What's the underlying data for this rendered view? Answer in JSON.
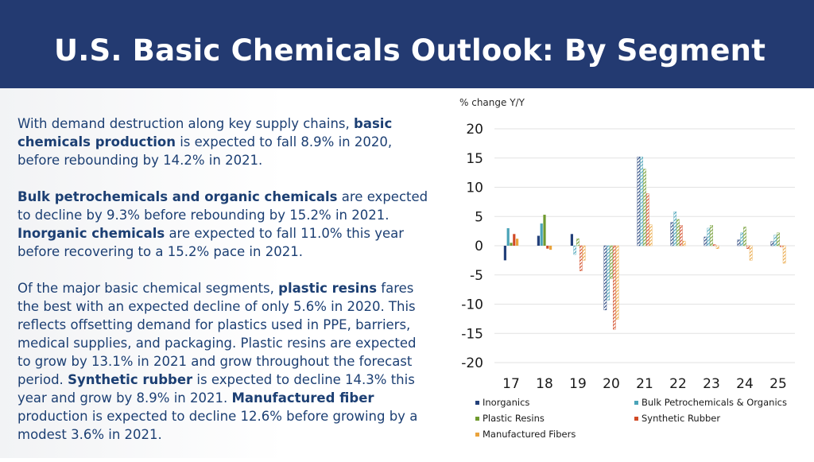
{
  "header": {
    "title": "U.S. Basic Chemicals Outlook: By Segment"
  },
  "paragraphs": [
    {
      "runs": [
        {
          "text": "With demand destruction along key supply chains, ",
          "bold": false
        },
        {
          "text": "basic chemicals production",
          "bold": true
        },
        {
          "text": " is expected to fall 8.9% in 2020, before rebounding by 14.2% in 2021.",
          "bold": false
        }
      ]
    },
    {
      "runs": [
        {
          "text": "Bulk petrochemicals and organic chemicals",
          "bold": true
        },
        {
          "text": " are expected to decline by 9.3% before rebounding by 15.2% in 2021. ",
          "bold": false
        },
        {
          "text": "Inorganic chemicals",
          "bold": true
        },
        {
          "text": " are expected to fall 11.0% this year before recovering to a 15.2% pace in 2021.",
          "bold": false
        }
      ]
    },
    {
      "runs": [
        {
          "text": "Of the major basic chemical segments, ",
          "bold": false
        },
        {
          "text": "plastic resins",
          "bold": true
        },
        {
          "text": " fares the best with an expected decline of only 5.6% in 2020. This reflects offsetting demand for plastics used in PPE, barriers, medical supplies, and packaging. Plastic resins are expected to grow by 13.1% in 2021 and grow throughout the forecast period. ",
          "bold": false
        },
        {
          "text": "Synthetic rubber",
          "bold": true
        },
        {
          "text": " is expected to decline 14.3% this year and grow by 8.9% in 2021. ",
          "bold": false
        },
        {
          "text": "Manufactured fiber",
          "bold": true
        },
        {
          "text": " production is expected to decline 12.6% before growing by a modest 3.6% in 2021.",
          "bold": false
        }
      ]
    }
  ],
  "chart_data": {
    "type": "bar",
    "ylabel": "% change Y/Y",
    "ylim": [
      -20,
      20
    ],
    "yticks": [
      20,
      15,
      10,
      5,
      0,
      -5,
      -10,
      -15,
      -20
    ],
    "grid": true,
    "legend_position": "bottom",
    "categories": [
      "17",
      "18",
      "19",
      "20",
      "21",
      "22",
      "23",
      "24",
      "25"
    ],
    "series": [
      {
        "name": "Inorganics",
        "color": "#23407a",
        "pattern": "solid",
        "values": [
          -2.5,
          1.7,
          2.0,
          -11.0,
          15.2,
          4.0,
          1.5,
          1.0,
          0.7
        ]
      },
      {
        "name": "Bulk Petrochemicals & Organics",
        "color": "#4aa3b8",
        "pattern": "solid-then-hatched",
        "values": [
          3.0,
          3.8,
          -1.5,
          -9.3,
          15.2,
          5.8,
          3.0,
          2.2,
          1.8
        ]
      },
      {
        "name": "Plastic Resins",
        "color": "#6f9a2e",
        "pattern": "solid-then-hatched",
        "values": [
          0.5,
          5.3,
          1.2,
          -5.6,
          13.1,
          4.5,
          3.5,
          3.2,
          2.2
        ]
      },
      {
        "name": "Synthetic Rubber",
        "color": "#d14a26",
        "pattern": "solid-then-hatched",
        "values": [
          2.0,
          -0.5,
          -4.3,
          -14.3,
          8.9,
          3.5,
          0.2,
          -0.5,
          -0.2
        ]
      },
      {
        "name": "Manufactured Fibers",
        "color": "#e9a33c",
        "pattern": "solid-then-hatched",
        "values": [
          1.2,
          -0.7,
          -2.5,
          -12.6,
          3.6,
          0.8,
          -0.5,
          -2.5,
          -3.0
        ]
      }
    ],
    "hatched_from_category": "19"
  }
}
